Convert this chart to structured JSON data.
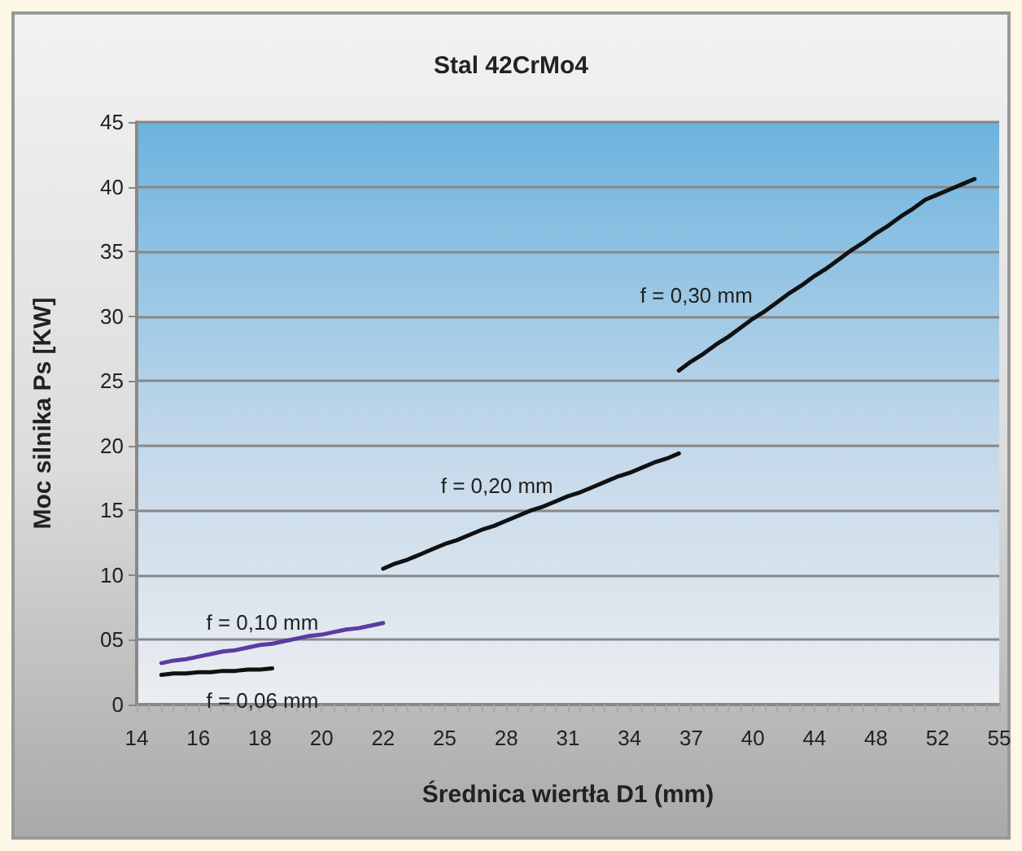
{
  "chart_data": {
    "type": "line",
    "title": "Stal 42CrMo4",
    "xlabel": "Średnica wiertła D1 (mm)",
    "ylabel": "Moc silnika Ps [KW]",
    "categories": [
      "14",
      null,
      null,
      null,
      null,
      "16",
      null,
      null,
      null,
      null,
      "18",
      null,
      null,
      null,
      null,
      "20",
      null,
      null,
      null,
      null,
      "22",
      null,
      null,
      null,
      null,
      "25",
      null,
      null,
      null,
      null,
      "28",
      null,
      null,
      null,
      null,
      "31",
      null,
      null,
      null,
      null,
      "34",
      null,
      null,
      null,
      null,
      "37",
      null,
      null,
      null,
      null,
      "40",
      null,
      null,
      null,
      null,
      "44",
      null,
      null,
      null,
      null,
      "48",
      null,
      null,
      null,
      null,
      "52",
      null,
      null,
      null,
      null,
      "55"
    ],
    "series": [
      {
        "name": "f = 0,06 mm",
        "color": "#111111",
        "values": [
          null,
          null,
          2.3,
          2.4,
          2.4,
          2.5,
          2.5,
          2.6,
          2.6,
          2.7,
          2.7,
          2.8,
          null,
          null,
          null,
          null,
          null,
          null,
          null,
          null,
          null,
          null,
          null,
          null,
          null,
          null,
          null,
          null,
          null,
          null,
          null,
          null,
          null,
          null,
          null,
          null,
          null,
          null,
          null,
          null,
          null,
          null,
          null,
          null,
          null,
          null,
          null,
          null,
          null,
          null,
          null,
          null,
          null,
          null,
          null,
          null,
          null,
          null,
          null,
          null,
          null,
          null,
          null,
          null,
          null,
          null,
          null,
          null,
          null,
          null,
          null
        ]
      },
      {
        "name": "f = 0,10 mm",
        "color": "#5b3c9e",
        "values": [
          null,
          null,
          3.2,
          3.4,
          3.5,
          3.7,
          3.9,
          4.1,
          4.2,
          4.4,
          4.6,
          4.7,
          4.9,
          5.1,
          5.3,
          5.4,
          5.6,
          5.8,
          5.9,
          6.1,
          6.3,
          null,
          null,
          null,
          null,
          null,
          null,
          null,
          null,
          null,
          null,
          null,
          null,
          null,
          null,
          null,
          null,
          null,
          null,
          null,
          null,
          null,
          null,
          null,
          null,
          null,
          null,
          null,
          null,
          null,
          null,
          null,
          null,
          null,
          null,
          null,
          null,
          null,
          null,
          null,
          null,
          null,
          null,
          null,
          null,
          null,
          null,
          null,
          null,
          null,
          null
        ]
      },
      {
        "name": "f = 0,20 mm",
        "color": "#111111",
        "values": [
          null,
          null,
          null,
          null,
          null,
          null,
          null,
          null,
          null,
          null,
          null,
          null,
          null,
          null,
          null,
          null,
          null,
          null,
          null,
          null,
          10.5,
          10.9,
          11.2,
          11.6,
          12.0,
          12.4,
          12.7,
          13.1,
          13.5,
          13.8,
          14.2,
          14.6,
          15.0,
          15.3,
          15.7,
          16.1,
          16.4,
          16.8,
          17.2,
          17.6,
          17.9,
          18.3,
          18.7,
          19.0,
          19.4,
          null,
          null,
          null,
          null,
          null,
          null,
          null,
          null,
          null,
          null,
          null,
          null,
          null,
          null,
          null,
          null,
          null,
          null,
          null,
          null,
          null,
          null,
          null,
          null,
          null,
          null
        ]
      },
      {
        "name": "f = 0,30 mm",
        "color": "#111111",
        "values": [
          null,
          null,
          null,
          null,
          null,
          null,
          null,
          null,
          null,
          null,
          null,
          null,
          null,
          null,
          null,
          null,
          null,
          null,
          null,
          null,
          null,
          null,
          null,
          null,
          null,
          null,
          null,
          null,
          null,
          null,
          null,
          null,
          null,
          null,
          null,
          null,
          null,
          null,
          null,
          null,
          null,
          null,
          null,
          null,
          25.8,
          26.5,
          27.1,
          27.8,
          28.4,
          29.1,
          29.8,
          30.4,
          31.1,
          31.8,
          32.4,
          33.1,
          33.7,
          34.4,
          35.1,
          35.7,
          36.4,
          37.0,
          37.7,
          38.3,
          39.0,
          39.4,
          39.8,
          40.2,
          40.6,
          null,
          null
        ]
      }
    ],
    "ylim": [
      0,
      45
    ],
    "yticks": [
      0,
      {
        "value": 5,
        "label": "05"
      },
      10,
      15,
      20,
      25,
      30,
      35,
      40,
      45
    ],
    "grid": "y",
    "legend": false,
    "marker": "none",
    "line_style": "solid"
  }
}
